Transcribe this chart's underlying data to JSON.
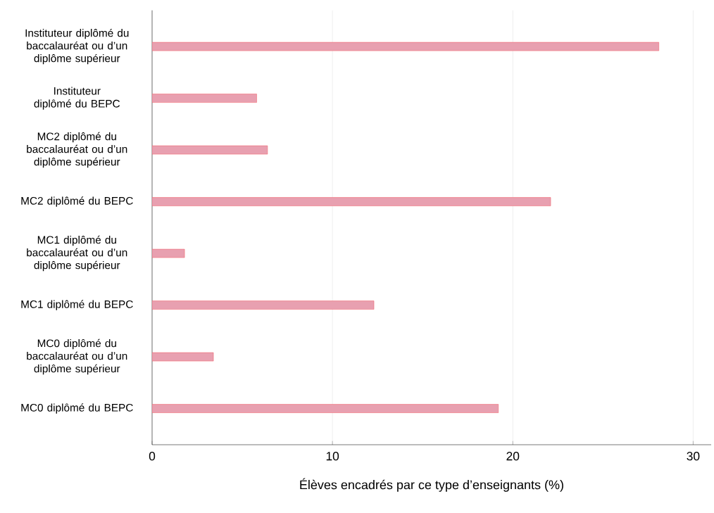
{
  "chart_data": {
    "type": "bar",
    "orientation": "horizontal",
    "xlabel": "Élèves encadrés par ce type d’enseignants (%)",
    "categories": [
      "Instituteur diplômé du baccalauréat ou d’un diplôme supérieur",
      "Instituteur diplômé du BEPC",
      "MC2 diplômé du baccalauréat ou d’un diplôme supérieur",
      "MC2 diplômé du BEPC",
      "MC1 diplômé du baccalauréat ou d’un diplôme supérieur",
      "MC1 diplômé du BEPC",
      "MC0 diplômé du baccalauréat ou d’un diplôme supérieur",
      "MC0 diplômé du BEPC"
    ],
    "values": [
      28.1,
      5.8,
      6.4,
      22.1,
      1.8,
      12.3,
      3.4,
      19.2
    ],
    "color": "#e8a0b0",
    "xlim": [
      0,
      31
    ],
    "xticks": [
      0,
      10,
      20,
      30
    ],
    "grid": "x"
  }
}
